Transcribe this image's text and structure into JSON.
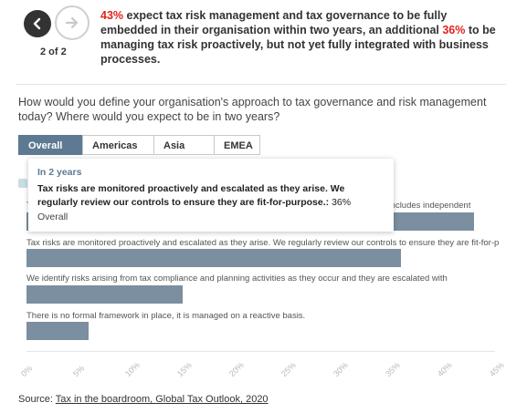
{
  "nav": {
    "counter": "2 of 2"
  },
  "headline": {
    "pct1": "43%",
    "text1": " expect tax risk management and tax governance to be fully embedded in their organisation within two years, an additional ",
    "pct2": "36%",
    "text2": " to be managing tax risk proactively, but not yet fully integrated with business processes."
  },
  "question": "How would you define your organisation's approach to tax governance and risk management today? Where would you expect to be in two years?",
  "tabs": [
    "Overall",
    "Americas",
    "Asia Pac",
    "EMEA"
  ],
  "chart_data": {
    "type": "bar",
    "orientation": "horizontal",
    "categories": [
      "Tax risk management and tax governance is fully embedded; our tax control framework model includes independent",
      "Tax risks are monitored proactively and escalated as they arise. We regularly review our controls to ensure they are fit-for-purpose.",
      "We identify risks arising from tax compliance and planning activities as they occur and they are escalated with",
      "There is no formal framework in place, it is managed on a reactive basis."
    ],
    "values": [
      43,
      36,
      15,
      6
    ],
    "xlim": [
      0,
      45
    ],
    "ticks": [
      "0%",
      "5%",
      "10%",
      "15%",
      "20%",
      "25%",
      "30%",
      "35%",
      "40%",
      "45%"
    ]
  },
  "tooltip": {
    "title": "In 2 years",
    "label": "Tax risks are monitored proactively and escalated as they arise. We regularly review our controls to ensure they are fit-for-purpose.:",
    "value": " 36%",
    "series": "Overall"
  },
  "source": {
    "prefix": "Source: ",
    "link": "Tax in the boardroom, Global Tax Outlook, 2020"
  },
  "colors": {
    "accent": "#e2231a",
    "bar": "#7c8fa1",
    "tab_active": "#5d7a92"
  }
}
